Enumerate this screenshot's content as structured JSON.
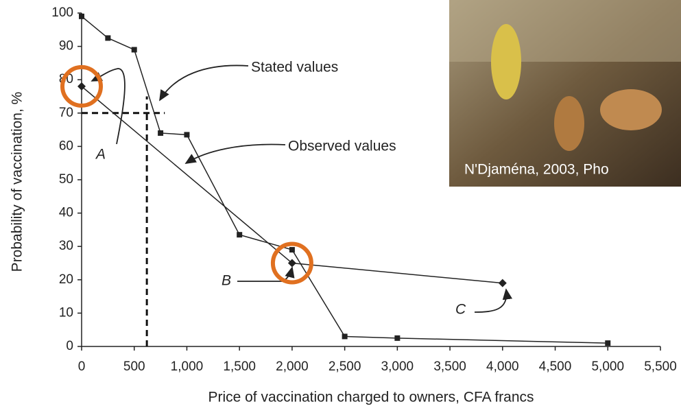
{
  "chart_data": {
    "type": "line",
    "x_label": "Price of vaccination charged to owners, CFA francs",
    "y_label": "Probability of vaccination, %",
    "xlim": [
      0,
      5500
    ],
    "xticks": [
      0,
      500,
      {
        "value": 1000,
        "label": "1,000"
      },
      {
        "value": 1500,
        "label": "1,500"
      },
      {
        "value": 2000,
        "label": "2,000"
      },
      {
        "value": 2500,
        "label": "2,500"
      },
      {
        "value": 3000,
        "label": "3,000"
      },
      {
        "value": 3500,
        "label": "3,500"
      },
      {
        "value": 4000,
        "label": "4,000"
      },
      {
        "value": 4500,
        "label": "4,500"
      },
      {
        "value": 5000,
        "label": "5,000"
      },
      {
        "value": 5500,
        "label": "5,500"
      }
    ],
    "ylim": [
      0,
      100
    ],
    "yticks": [
      0,
      10,
      20,
      30,
      40,
      50,
      60,
      70,
      80,
      90,
      100
    ],
    "grid": false,
    "series": [
      {
        "name": "Stated values",
        "color": "#222222",
        "marker": "square",
        "x": [
          0,
          250,
          500,
          750,
          1000,
          1500,
          2000,
          2500,
          3000,
          5000
        ],
        "values": [
          99,
          92.5,
          89,
          64,
          63.5,
          33.5,
          29,
          3,
          2.5,
          1
        ]
      },
      {
        "name": "Observed values",
        "color": "#222222",
        "marker": "diamond",
        "x": [
          0,
          2000,
          4000
        ],
        "values": [
          78,
          25,
          19
        ]
      }
    ],
    "point_labels": [
      "A",
      "B",
      "C"
    ],
    "dashed_lines": [
      {
        "x": [
          0,
          790
        ],
        "y": [
          70,
          70
        ]
      },
      {
        "x": [
          620,
          620
        ],
        "y": [
          0,
          75
        ]
      }
    ]
  },
  "photo": {
    "caption": "N'Djaména, 2003, Pho"
  }
}
